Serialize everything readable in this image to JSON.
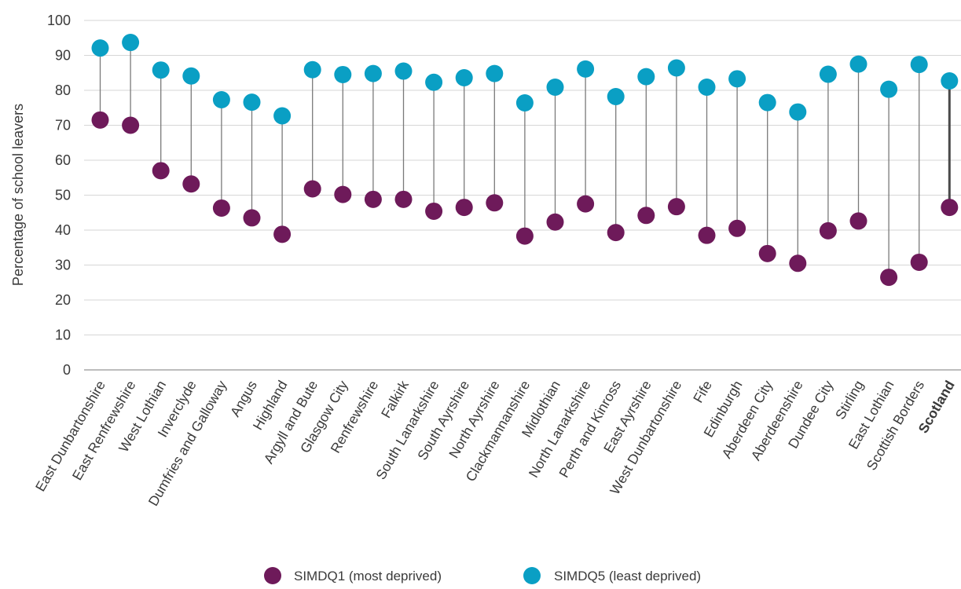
{
  "chart_data": {
    "type": "dumbbell",
    "title": "",
    "xlabel": "",
    "ylabel": "Percentage of school leavers",
    "ylim": [
      0,
      100
    ],
    "yticks": [
      0,
      10,
      20,
      30,
      40,
      50,
      60,
      70,
      80,
      90,
      100
    ],
    "grid": true,
    "legend_position": "bottom-center",
    "highlight_category": "Scotland",
    "categories": [
      "East Dunbartonshire",
      "East Renfrewshire",
      "West Lothian",
      "Inverclyde",
      "Dumfries and Galloway",
      "Angus",
      "Highland",
      "Argyll and Bute",
      "Glasgow City",
      "Renfrewshire",
      "Falkirk",
      "South Lanarkshire",
      "South Ayrshire",
      "North Ayrshire",
      "Clackmannanshire",
      "Midlothian",
      "North Lanarkshire",
      "Perth and Kinross",
      "East Ayrshire",
      "West Dunbartonshire",
      "Fife",
      "Edinburgh",
      "Aberdeen City",
      "Aberdeenshire",
      "Dundee City",
      "Stirling",
      "East Lothian",
      "Scottish Borders",
      "Scotland"
    ],
    "series": [
      {
        "name": "SIMDQ1 (most deprived)",
        "color": "#6e1a5a",
        "values": [
          71.5,
          70,
          57,
          53.2,
          46.3,
          43.5,
          38.8,
          51.8,
          50.2,
          48.8,
          48.8,
          45.4,
          46.5,
          47.8,
          38.3,
          42.3,
          47.5,
          39.3,
          44.2,
          46.7,
          38.5,
          40.5,
          33.3,
          30.5,
          39.8,
          42.6,
          26.5,
          30.8,
          46.5
        ]
      },
      {
        "name": "SIMDQ5 (least deprived)",
        "color": "#0a9fc4",
        "values": [
          92.1,
          93.7,
          85.8,
          84.1,
          77.3,
          76.6,
          72.7,
          85.9,
          84.5,
          84.8,
          85.5,
          82.3,
          83.6,
          84.8,
          76.4,
          80.9,
          86.1,
          78.2,
          83.9,
          86.4,
          80.9,
          83.3,
          76.5,
          73.8,
          84.6,
          87.5,
          80.3,
          87.4,
          82.7
        ]
      }
    ]
  }
}
